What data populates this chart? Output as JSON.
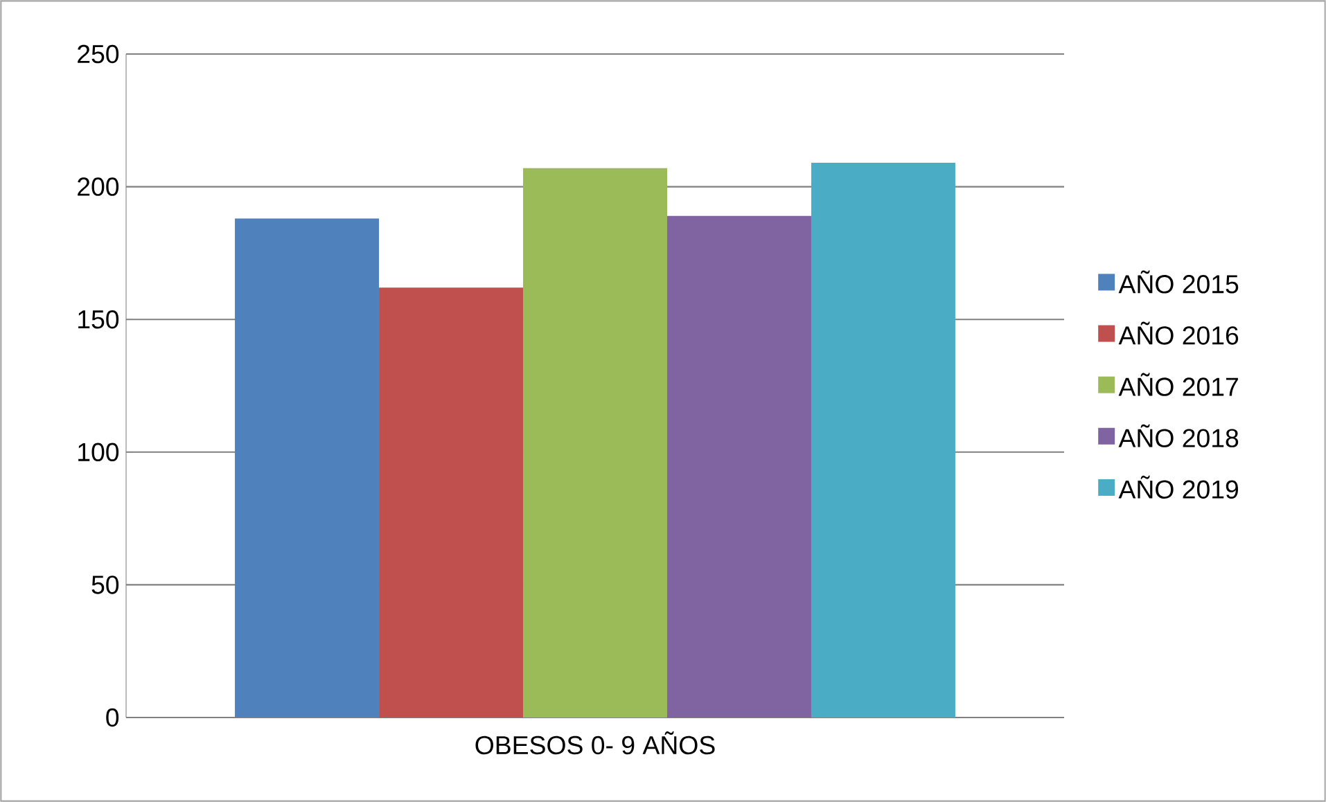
{
  "chart_data": {
    "type": "bar",
    "categories": [
      "OBESOS 0- 9 AÑOS"
    ],
    "series": [
      {
        "name": "AÑO 2015",
        "color": "#4f81bd",
        "values": [
          188
        ]
      },
      {
        "name": "AÑO 2016",
        "color": "#c0504d",
        "values": [
          162
        ]
      },
      {
        "name": "AÑO 2017",
        "color": "#9bbb59",
        "values": [
          207
        ]
      },
      {
        "name": "AÑO 2018",
        "color": "#8064a2",
        "values": [
          189
        ]
      },
      {
        "name": "AÑO 2019",
        "color": "#4bacc6",
        "values": [
          209
        ]
      }
    ],
    "ylim": [
      0,
      250
    ],
    "yticks": [
      0,
      50,
      100,
      150,
      200,
      250
    ],
    "grid": "y",
    "legend": "right"
  }
}
